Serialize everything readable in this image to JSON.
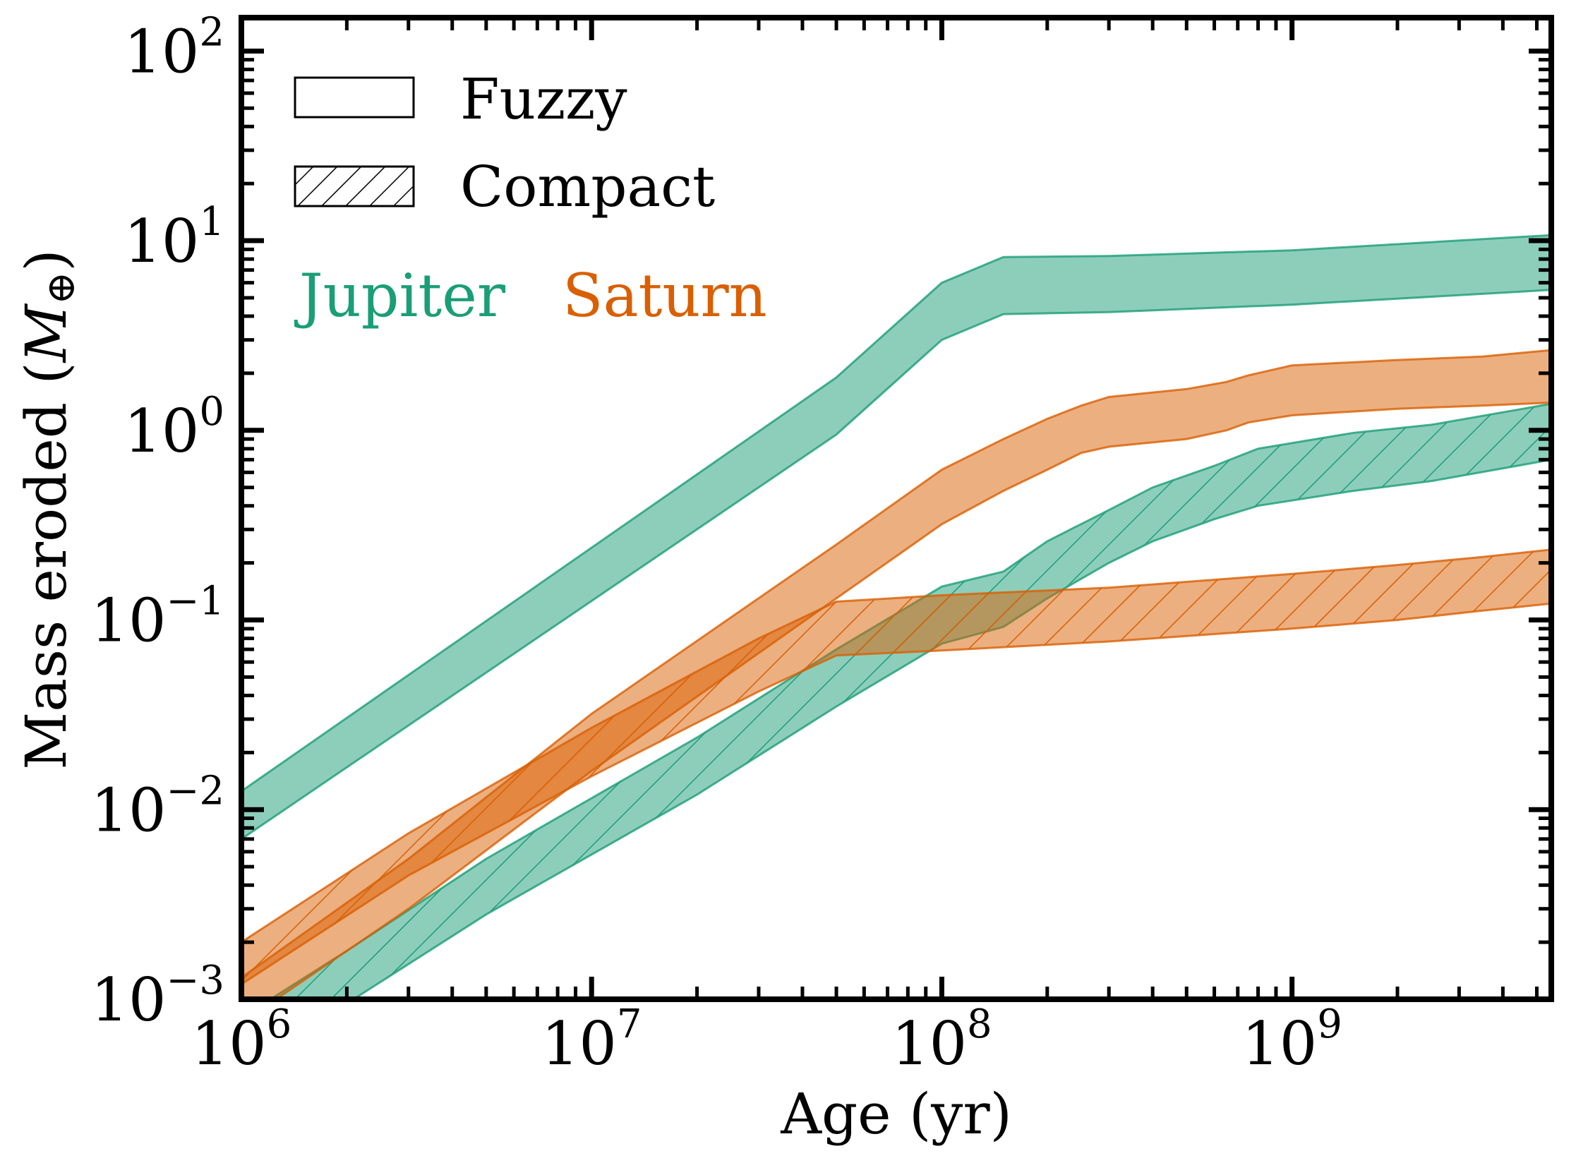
{
  "chart_data": {
    "type": "area",
    "x_scale": "log",
    "y_scale": "log",
    "xlim": [
      1000000,
      5500000000
    ],
    "ylim": [
      0.001,
      150
    ],
    "x_ticks": [
      {
        "value": 1000000,
        "base": "10",
        "exp": "6"
      },
      {
        "value": 10000000,
        "base": "10",
        "exp": "7"
      },
      {
        "value": 100000000,
        "base": "10",
        "exp": "8"
      },
      {
        "value": 1000000000,
        "base": "10",
        "exp": "9"
      }
    ],
    "y_ticks": [
      {
        "value": 0.001,
        "base": "10",
        "exp": "−3"
      },
      {
        "value": 0.01,
        "base": "10",
        "exp": "−2"
      },
      {
        "value": 0.1,
        "base": "10",
        "exp": "−1"
      },
      {
        "value": 1,
        "base": "10",
        "exp": "0"
      },
      {
        "value": 10,
        "base": "10",
        "exp": "1"
      },
      {
        "value": 100,
        "base": "10",
        "exp": "2"
      }
    ],
    "xlabel": "Age (yr)",
    "ylabel_main": "Mass eroded (",
    "ylabel_sym": "M",
    "ylabel_sub": "⊕",
    "ylabel_close": ")",
    "legend": [
      {
        "label": "Fuzzy",
        "style": "solid"
      },
      {
        "label": "Compact",
        "style": "hatched"
      }
    ],
    "planet_labels": [
      {
        "name": "Jupiter",
        "color": "#1b9e77"
      },
      {
        "name": "Saturn",
        "color": "#d95f02"
      }
    ],
    "colors": {
      "jupiter": "#1b9e77",
      "saturn": "#d95f02"
    },
    "series": [
      {
        "name": "Jupiter Fuzzy",
        "planet": "jupiter",
        "style": "solid",
        "x": [
          1000000,
          50000000,
          100000000,
          150000000,
          300000000,
          1000000000,
          5500000000
        ],
        "lower": [
          0.007,
          0.95,
          3.0,
          4.1,
          4.2,
          4.6,
          5.5
        ],
        "upper": [
          0.0125,
          1.9,
          6.0,
          8.2,
          8.3,
          8.9,
          10.7
        ]
      },
      {
        "name": "Jupiter Compact",
        "planet": "jupiter",
        "style": "hatched",
        "x": [
          1000000,
          2000000,
          5000000,
          20000000,
          50000000,
          100000000,
          150000000,
          200000000,
          300000000,
          400000000,
          600000000,
          800000000,
          1500000000,
          2500000000,
          5500000000
        ],
        "lower": [
          0.00045,
          0.00095,
          0.0028,
          0.012,
          0.035,
          0.075,
          0.092,
          0.13,
          0.2,
          0.26,
          0.34,
          0.4,
          0.48,
          0.54,
          0.7
        ],
        "upper": [
          0.0008,
          0.0018,
          0.0055,
          0.024,
          0.07,
          0.15,
          0.18,
          0.26,
          0.38,
          0.5,
          0.65,
          0.8,
          0.97,
          1.07,
          1.38
        ]
      },
      {
        "name": "Saturn Fuzzy",
        "planet": "saturn",
        "style": "solid",
        "x": [
          1000000,
          3000000,
          10000000,
          50000000,
          100000000,
          150000000,
          200000000,
          250000000,
          300000000,
          500000000,
          650000000,
          750000000,
          1000000000,
          2000000000,
          3500000000,
          5500000000
        ],
        "lower": [
          0.00075,
          0.003,
          0.016,
          0.13,
          0.32,
          0.48,
          0.62,
          0.76,
          0.82,
          0.9,
          1.0,
          1.1,
          1.2,
          1.3,
          1.35,
          1.4
        ],
        "upper": [
          0.0013,
          0.0055,
          0.032,
          0.25,
          0.62,
          0.9,
          1.15,
          1.35,
          1.5,
          1.65,
          1.8,
          1.95,
          2.2,
          2.35,
          2.45,
          2.65
        ]
      },
      {
        "name": "Saturn Compact",
        "planet": "saturn",
        "style": "hatched",
        "x": [
          1000000,
          3000000,
          10000000,
          30000000,
          50000000,
          100000000,
          300000000,
          1000000000,
          2000000000,
          3500000000,
          5500000000
        ],
        "lower": [
          0.0012,
          0.0045,
          0.015,
          0.042,
          0.065,
          0.069,
          0.077,
          0.09,
          0.1,
          0.112,
          0.122
        ],
        "upper": [
          0.002,
          0.0075,
          0.027,
          0.08,
          0.125,
          0.135,
          0.148,
          0.175,
          0.195,
          0.215,
          0.235
        ]
      }
    ]
  }
}
